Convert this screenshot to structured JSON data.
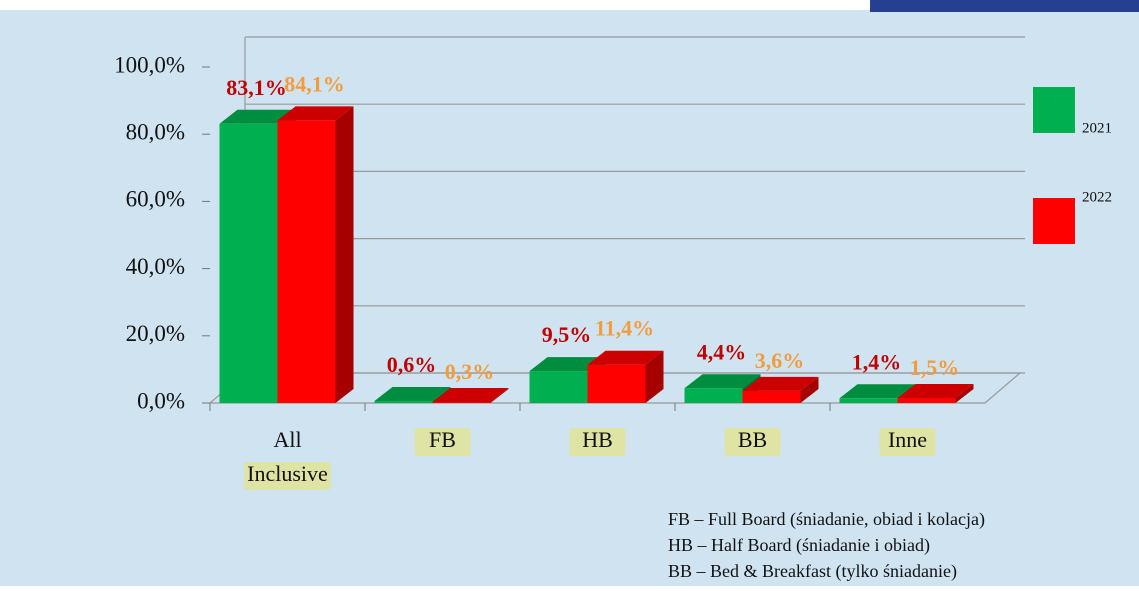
{
  "chart_data": {
    "type": "bar3d",
    "categories": [
      "All Inclusive",
      "FB",
      "HB",
      "BB",
      "Inne"
    ],
    "series": [
      {
        "name": "2021",
        "color": "#00b050",
        "label_color": "#c00000",
        "values": [
          83.1,
          0.6,
          9.5,
          4.4,
          1.4
        ],
        "value_labels": [
          "83,1%",
          "0,6%",
          "9,5%",
          "4,4%",
          "1,4%"
        ]
      },
      {
        "name": "2022",
        "color": "#ff0000",
        "label_color": "#f39c3c",
        "values": [
          84.1,
          0.3,
          11.4,
          3.6,
          1.5
        ],
        "value_labels": [
          "84,1%",
          "0,3%",
          "11,4%",
          "3,6%",
          "1,5%"
        ]
      }
    ],
    "ylim": [
      0,
      100
    ],
    "yticks": [
      {
        "value": 0,
        "label": "0,0%"
      },
      {
        "value": 20,
        "label": "20,0%"
      },
      {
        "value": 40,
        "label": "40,0%"
      },
      {
        "value": 60,
        "label": "60,0%"
      },
      {
        "value": 80,
        "label": "80,0%"
      },
      {
        "value": 100,
        "label": "100,0%"
      }
    ],
    "grid": true,
    "legend": "right",
    "footnotes": [
      "FB – Full Board (śniadanie, obiad i kolacja)",
      "HB – Half Board (śniadanie i obiad)",
      "BB – Bed & Breakfast (tylko śniadanie)"
    ]
  }
}
